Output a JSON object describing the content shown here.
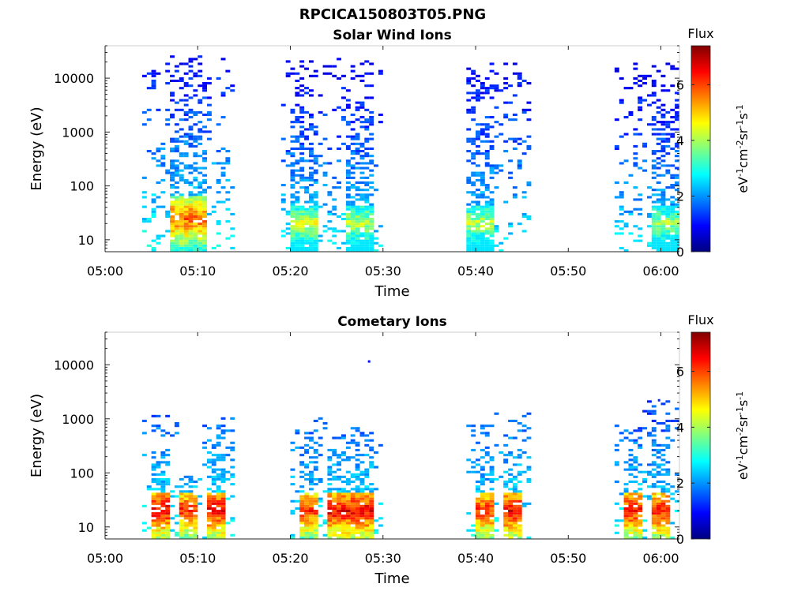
{
  "figure_title": "RPCICA150803T05.PNG",
  "colormap": [
    "#000080",
    "#0000ff",
    "#0080ff",
    "#00ffff",
    "#80ff80",
    "#ffff00",
    "#ff8000",
    "#ff0000",
    "#800000"
  ],
  "chart_data": [
    {
      "type": "heatmap",
      "title": "Solar Wind Ions",
      "xlabel": "Time",
      "ylabel": "Energy (eV)",
      "y_scale": "log",
      "xlim": [
        "05:00",
        "06:02"
      ],
      "ylim": [
        6,
        40000
      ],
      "x_ticks": [
        "05:00",
        "05:10",
        "05:20",
        "05:30",
        "05:40",
        "05:50",
        "06:00"
      ],
      "y_ticks": [
        "10",
        "100",
        "1000",
        "10000"
      ],
      "colorbar": {
        "label": "Flux",
        "units_base": "eV",
        "units_parts": [
          [
            "-1",
            "cm"
          ],
          [
            "-2",
            "sr"
          ],
          [
            "-1",
            "s"
          ],
          [
            "-1",
            ""
          ]
        ],
        "ticks": [
          "0",
          "2",
          "4",
          "6"
        ],
        "range": [
          0,
          7.4
        ]
      },
      "bursts": [
        {
          "start": "05:04",
          "end": "05:14",
          "core_start": "05:07",
          "core_end": "05:11",
          "emin": 6,
          "emax": 25000,
          "cold_max": 60,
          "cold_min": 6,
          "peak_flux": 6.5,
          "mean_flux": 2.3
        },
        {
          "start": "05:19",
          "end": "05:23",
          "core_start": "05:20",
          "core_end": "05:23",
          "emin": 6,
          "emax": 22000,
          "cold_max": 40,
          "cold_min": 6,
          "peak_flux": 5.0,
          "mean_flux": 2.2
        },
        {
          "start": "05:23",
          "end": "05:30",
          "core_start": "05:26",
          "core_end": "05:29",
          "emin": 6,
          "emax": 22000,
          "cold_max": 40,
          "cold_min": 6,
          "peak_flux": 4.8,
          "mean_flux": 2.2
        },
        {
          "start": "05:39",
          "end": "05:46",
          "core_start": "05:39",
          "core_end": "05:42",
          "emin": 6,
          "emax": 18000,
          "cold_max": 40,
          "cold_min": 6,
          "peak_flux": 4.8,
          "mean_flux": 2.2
        },
        {
          "start": "05:55",
          "end": "06:02",
          "core_start": "05:59",
          "core_end": "06:02",
          "emin": 6,
          "emax": 18000,
          "cold_max": 40,
          "cold_min": 6,
          "peak_flux": 4.6,
          "mean_flux": 2.1
        }
      ]
    },
    {
      "type": "heatmap",
      "title": "Cometary Ions",
      "xlabel": "Time",
      "ylabel": "Energy (eV)",
      "y_scale": "log",
      "xlim": [
        "05:00",
        "06:02"
      ],
      "ylim": [
        6,
        40000
      ],
      "x_ticks": [
        "05:00",
        "05:10",
        "05:20",
        "05:30",
        "05:40",
        "05:50",
        "06:00"
      ],
      "y_ticks": [
        "10",
        "100",
        "1000",
        "10000"
      ],
      "colorbar": {
        "label": "Flux",
        "units_base": "eV",
        "units_parts": [
          [
            "-1",
            "cm"
          ],
          [
            "-2",
            "sr"
          ],
          [
            "-1",
            "s"
          ],
          [
            "-1",
            ""
          ]
        ],
        "ticks": [
          "0",
          "2",
          "4",
          "6"
        ],
        "range": [
          0,
          7.4
        ]
      },
      "bursts": [
        {
          "start": "05:04",
          "end": "05:08",
          "core_start": "05:05",
          "core_end": "05:07",
          "emin": 6,
          "emax": 1100,
          "cold_max": 42,
          "cold_min": 6,
          "peak_flux": 7.2,
          "mean_flux": 2.4
        },
        {
          "start": "05:08",
          "end": "05:10",
          "core_start": "05:08",
          "core_end": "05:10",
          "emin": 6,
          "emax": 120,
          "cold_max": 42,
          "cold_min": 6,
          "peak_flux": 6.8,
          "mean_flux": 2.3
        },
        {
          "start": "05:10",
          "end": "05:14",
          "core_start": "05:11",
          "core_end": "05:13",
          "emin": 6,
          "emax": 1000,
          "cold_max": 42,
          "cold_min": 6,
          "peak_flux": 7.2,
          "mean_flux": 2.4
        },
        {
          "start": "05:20",
          "end": "05:24",
          "core_start": "05:21",
          "core_end": "05:23",
          "emin": 6,
          "emax": 1000,
          "cold_max": 40,
          "cold_min": 6,
          "peak_flux": 6.8,
          "mean_flux": 2.3
        },
        {
          "start": "05:24",
          "end": "05:30",
          "core_start": "05:24",
          "core_end": "05:29",
          "emin": 6,
          "emax": 700,
          "cold_max": 40,
          "cold_min": 6,
          "peak_flux": 7.2,
          "mean_flux": 2.4
        },
        {
          "start": "05:39",
          "end": "05:42",
          "core_start": "05:40",
          "core_end": "05:42",
          "emin": 6,
          "emax": 900,
          "cold_max": 40,
          "cold_min": 6,
          "peak_flux": 6.8,
          "mean_flux": 2.3
        },
        {
          "start": "05:42",
          "end": "05:46",
          "core_start": "05:43",
          "core_end": "05:45",
          "emin": 6,
          "emax": 1200,
          "cold_max": 40,
          "cold_min": 6,
          "peak_flux": 7.2,
          "mean_flux": 2.4
        },
        {
          "start": "05:55",
          "end": "05:58",
          "core_start": "05:56",
          "core_end": "05:58",
          "emin": 6,
          "emax": 1000,
          "cold_max": 40,
          "cold_min": 6,
          "peak_flux": 7.0,
          "mean_flux": 2.3
        },
        {
          "start": "05:58",
          "end": "06:02",
          "core_start": "05:59",
          "core_end": "06:01",
          "emin": 6,
          "emax": 2200,
          "cold_max": 40,
          "cold_min": 6,
          "peak_flux": 7.0,
          "mean_flux": 2.3
        }
      ],
      "isolated_points": [
        {
          "time": "05:28.5",
          "energy": 11500,
          "flux": 1.0
        },
        {
          "time": "05:59.8",
          "energy": 2200,
          "flux": 1.2
        }
      ]
    }
  ]
}
